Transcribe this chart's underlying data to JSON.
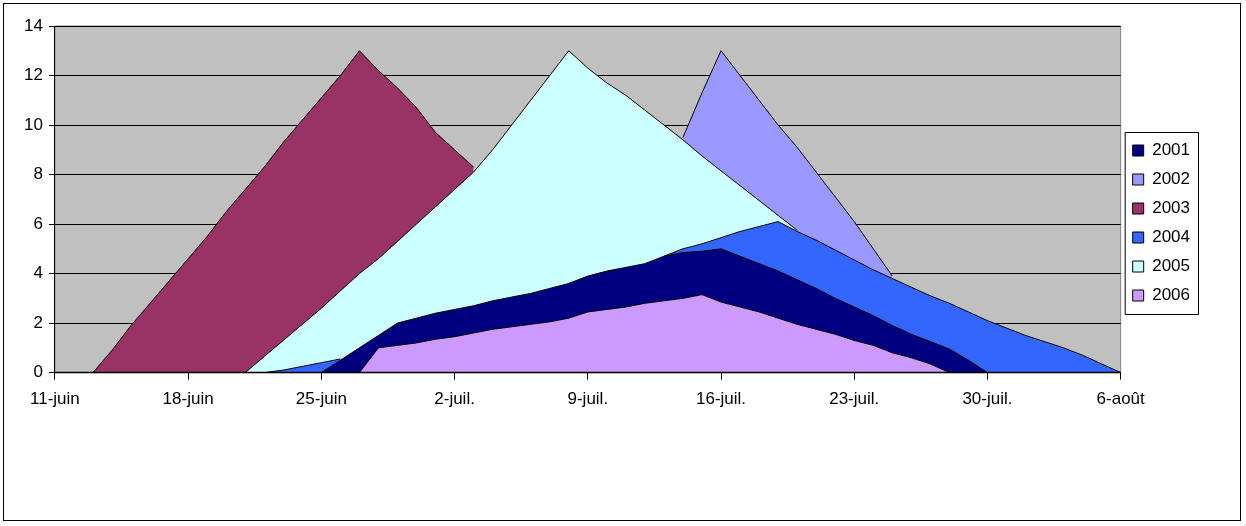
{
  "chart_data": {
    "type": "area",
    "categories": [
      "11-juin",
      null,
      null,
      null,
      null,
      null,
      null,
      "18-juin",
      null,
      null,
      null,
      null,
      null,
      null,
      "25-juin",
      null,
      null,
      null,
      null,
      null,
      null,
      "2-juil.",
      null,
      null,
      null,
      null,
      null,
      null,
      "9-juil.",
      null,
      null,
      null,
      null,
      null,
      null,
      "16-juil.",
      null,
      null,
      null,
      null,
      null,
      null,
      "23-juil.",
      null,
      null,
      null,
      null,
      null,
      null,
      "30-juil.",
      null,
      null,
      null,
      null,
      null,
      null,
      "6-août"
    ],
    "series": [
      {
        "name": "2001",
        "color": "#000080",
        "values": [
          0,
          0,
          0,
          0,
          0,
          0,
          0,
          0,
          0,
          0,
          0,
          0,
          0,
          0,
          0,
          0.5,
          1.0,
          1.5,
          2.0,
          2.2,
          2.4,
          2.55,
          2.7,
          2.9,
          3.05,
          3.2,
          3.4,
          3.6,
          3.9,
          4.1,
          4.25,
          4.4,
          4.7,
          4.85,
          4.9,
          5.0,
          4.7,
          4.4,
          4.1,
          3.75,
          3.4,
          3.0,
          2.65,
          2.3,
          1.9,
          1.55,
          1.25,
          0.95,
          0.5,
          0,
          0,
          0,
          0,
          0,
          0,
          0,
          0
        ]
      },
      {
        "name": "2002",
        "color": "#9999ff",
        "values": [
          null,
          null,
          null,
          null,
          null,
          null,
          null,
          null,
          null,
          null,
          null,
          null,
          null,
          null,
          null,
          null,
          null,
          null,
          null,
          null,
          null,
          null,
          null,
          null,
          null,
          null,
          null,
          null,
          null,
          null,
          null,
          null,
          null,
          9.5,
          11.3,
          13,
          12,
          11,
          10,
          9.1,
          8.1,
          7.1,
          6.1,
          5.0,
          3.9,
          null,
          null,
          null,
          null,
          null,
          null,
          null,
          null,
          null,
          null,
          null,
          null
        ]
      },
      {
        "name": "2003",
        "color": "#993366",
        "values": [
          0,
          0,
          0,
          0.9,
          1.9,
          2.8,
          3.7,
          4.6,
          5.5,
          6.5,
          7.4,
          8.3,
          9.3,
          10.2,
          11.1,
          12,
          13,
          12.2,
          11.5,
          10.7,
          9.7,
          9.0,
          8.3,
          null,
          null,
          null,
          null,
          null,
          null,
          null,
          null,
          null,
          null,
          null,
          null,
          null,
          null,
          null,
          null,
          null,
          null,
          null,
          null,
          null,
          null,
          null,
          null,
          null,
          null,
          null,
          null,
          null,
          null,
          null,
          null,
          null,
          null
        ]
      },
      {
        "name": "2004",
        "color": "#3366ff",
        "values": [
          0,
          0,
          0,
          0,
          0,
          0,
          0,
          0,
          0,
          0,
          0,
          0,
          0.1,
          0.25,
          0.4,
          0.55,
          null,
          null,
          null,
          null,
          null,
          null,
          null,
          null,
          null,
          null,
          null,
          null,
          null,
          null,
          null,
          null,
          4.7,
          5.0,
          5.2,
          5.45,
          5.7,
          5.9,
          6.1,
          5.7,
          5.35,
          4.95,
          4.55,
          4.15,
          3.8,
          3.45,
          3.1,
          2.8,
          2.45,
          2.1,
          1.8,
          1.5,
          1.25,
          1.0,
          0.7,
          0.35,
          0
        ]
      },
      {
        "name": "2005",
        "color": "#ccffff",
        "values": [
          0,
          0,
          0,
          0,
          0,
          0,
          0,
          0,
          0,
          0,
          0,
          0.65,
          1.3,
          1.95,
          2.6,
          3.3,
          4.0,
          4.6,
          5.3,
          6.0,
          6.7,
          7.4,
          8.1,
          9.0,
          10,
          11,
          12,
          13,
          12.3,
          11.7,
          11.2,
          10.6,
          10.0,
          9.4,
          8.75,
          8.15,
          7.55,
          6.95,
          6.35,
          5.75,
          null,
          null,
          null,
          null,
          null,
          null,
          null,
          null,
          null,
          null,
          null,
          null,
          null,
          null,
          null,
          null,
          null
        ]
      },
      {
        "name": "2006",
        "color": "#cc99ff",
        "values": [
          0,
          0,
          0,
          0,
          0,
          0,
          0,
          0,
          0,
          0,
          0,
          0,
          0,
          0,
          0,
          0,
          0,
          1.0,
          1.1,
          1.2,
          1.35,
          1.45,
          1.6,
          1.75,
          1.85,
          1.95,
          2.05,
          2.2,
          2.45,
          2.55,
          2.65,
          2.8,
          2.9,
          3.0,
          3.15,
          2.85,
          2.65,
          2.45,
          2.2,
          1.95,
          1.75,
          1.55,
          1.3,
          1.1,
          0.8,
          0.6,
          0.35,
          0,
          0,
          0,
          0,
          0,
          0,
          0,
          0,
          0,
          0
        ]
      }
    ],
    "ylim": [
      0,
      14
    ],
    "yticks": [
      0,
      2,
      4,
      6,
      8,
      10,
      12,
      14
    ],
    "grid": "y",
    "legend": "right"
  }
}
